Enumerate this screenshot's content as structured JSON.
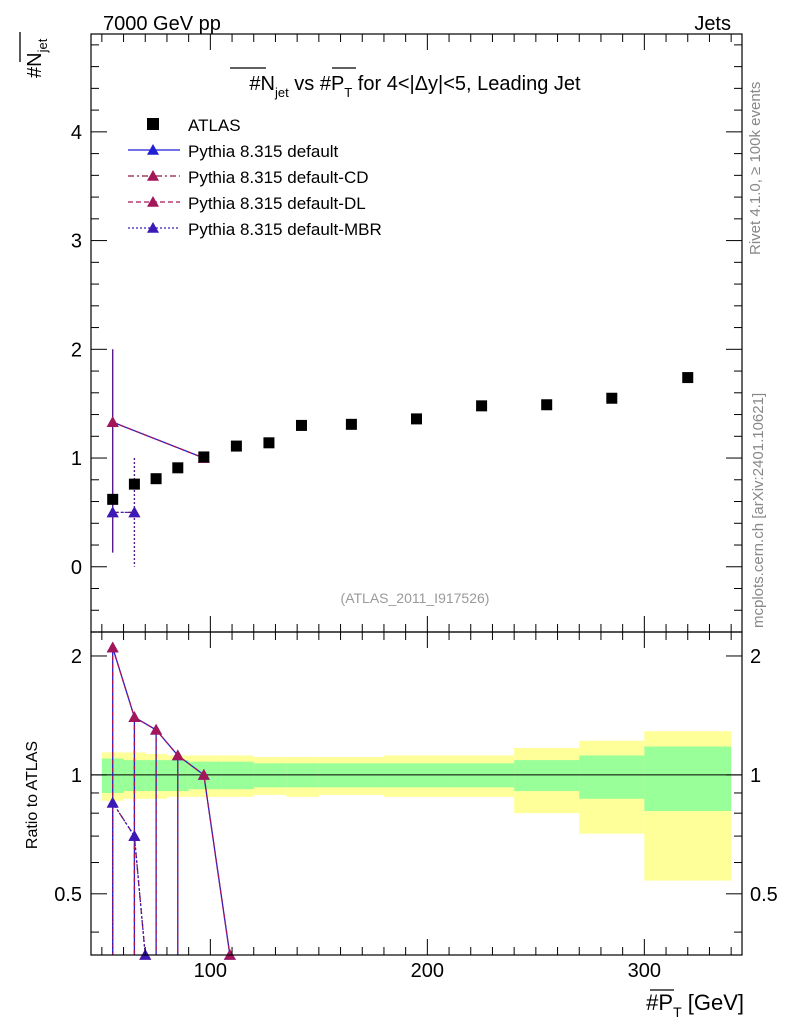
{
  "header": {
    "left": "7000 GeV pp",
    "right": "Jets"
  },
  "side_text": {
    "rivet": "Rivet 4.1.0, ≥ 100k events",
    "mcplots": "mcplots.cern.ch [arXiv:2401.10621]"
  },
  "chart_data": {
    "type": "scatter",
    "title": {
      "part1": "#N",
      "part1_sub": "jet",
      "part2": " vs #P",
      "part2_sub": "T",
      "part3": " for 4<|Δy|<5, Leading Jet"
    },
    "ylabel": {
      "main": "#N",
      "sub": "jet"
    },
    "xlabel": {
      "main": "#P",
      "sub": "T",
      "unit": " [GeV]"
    },
    "ratio_ylabel": "Ratio to ATLAS",
    "watermark": "(ATLAS_2011_I917526)",
    "xlim": [
      45,
      345
    ],
    "ylim": [
      -0.6,
      4.9
    ],
    "ratio_ylim": [
      0.35,
      2.3
    ],
    "x_ticks": [
      100,
      200,
      300
    ],
    "y_ticks": [
      0,
      1,
      2,
      3,
      4
    ],
    "ratio_ticks": [
      0.5,
      1,
      2
    ],
    "ratio_tick_labels": [
      "0.5",
      "1",
      "2"
    ],
    "data": {
      "name": "ATLAS",
      "points": [
        {
          "x": 55,
          "y": 0.62
        },
        {
          "x": 65,
          "y": 0.76
        },
        {
          "x": 75,
          "y": 0.81
        },
        {
          "x": 85,
          "y": 0.91
        },
        {
          "x": 97,
          "y": 1.01
        },
        {
          "x": 112,
          "y": 1.11
        },
        {
          "x": 127,
          "y": 1.14
        },
        {
          "x": 142,
          "y": 1.3
        },
        {
          "x": 165,
          "y": 1.31
        },
        {
          "x": 195,
          "y": 1.36
        },
        {
          "x": 225,
          "y": 1.48
        },
        {
          "x": 255,
          "y": 1.49
        },
        {
          "x": 285,
          "y": 1.55
        },
        {
          "x": 320,
          "y": 1.74
        }
      ]
    },
    "bands": [
      {
        "x0": 50,
        "x1": 60,
        "g": [
          0.9,
          1.1
        ],
        "y": [
          0.86,
          1.14
        ]
      },
      {
        "x0": 60,
        "x1": 70,
        "g": [
          0.91,
          1.09
        ],
        "y": [
          0.87,
          1.14
        ]
      },
      {
        "x0": 70,
        "x1": 80,
        "g": [
          0.91,
          1.09
        ],
        "y": [
          0.87,
          1.13
        ]
      },
      {
        "x0": 80,
        "x1": 90,
        "g": [
          0.91,
          1.09
        ],
        "y": [
          0.88,
          1.12
        ]
      },
      {
        "x0": 90,
        "x1": 105,
        "g": [
          0.92,
          1.08
        ],
        "y": [
          0.88,
          1.12
        ]
      },
      {
        "x0": 105,
        "x1": 120,
        "g": [
          0.92,
          1.08
        ],
        "y": [
          0.88,
          1.12
        ]
      },
      {
        "x0": 120,
        "x1": 135,
        "g": [
          0.93,
          1.07
        ],
        "y": [
          0.89,
          1.11
        ]
      },
      {
        "x0": 135,
        "x1": 150,
        "g": [
          0.93,
          1.07
        ],
        "y": [
          0.88,
          1.11
        ]
      },
      {
        "x0": 150,
        "x1": 180,
        "g": [
          0.93,
          1.07
        ],
        "y": [
          0.89,
          1.11
        ]
      },
      {
        "x0": 180,
        "x1": 210,
        "g": [
          0.93,
          1.07
        ],
        "y": [
          0.88,
          1.12
        ]
      },
      {
        "x0": 210,
        "x1": 240,
        "g": [
          0.93,
          1.07
        ],
        "y": [
          0.88,
          1.12
        ]
      },
      {
        "x0": 240,
        "x1": 270,
        "g": [
          0.91,
          1.09
        ],
        "y": [
          0.8,
          1.17
        ]
      },
      {
        "x0": 270,
        "x1": 300,
        "g": [
          0.87,
          1.12
        ],
        "y": [
          0.71,
          1.22
        ]
      },
      {
        "x0": 300,
        "x1": 340,
        "g": [
          0.81,
          1.18
        ],
        "y": [
          0.54,
          1.29
        ]
      }
    ],
    "series": [
      {
        "name": "Pythia 8.315 default",
        "color": "#1f1fd6",
        "dash": "",
        "marker": "#1f1fd6",
        "points": [
          {
            "x": 55,
            "y": 1.33
          },
          {
            "x": 97,
            "y": 1.0
          }
        ],
        "ratio": [
          {
            "x": 55,
            "y": 2.1
          },
          {
            "x": 65,
            "y": 1.4
          },
          {
            "x": 75,
            "y": 1.3
          },
          {
            "x": 85,
            "y": 1.12
          },
          {
            "x": 97,
            "y": 1.0
          },
          {
            "x": 109,
            "y": 0.35
          }
        ],
        "ratio_drops": [
          {
            "x": 55,
            "y": 2.1
          },
          {
            "x": 65,
            "y": 1.4
          },
          {
            "x": 75,
            "y": 1.3
          },
          {
            "x": 85,
            "y": 1.12
          }
        ]
      },
      {
        "name": "Pythia 8.315 default-CD",
        "color": "#8f1a3d",
        "dash": "6,3,2,3",
        "marker": "#a3175a",
        "points": [
          {
            "x": 55,
            "y": 0.5
          },
          {
            "x": 65,
            "y": 0.5
          }
        ],
        "ratio": [
          {
            "x": 55,
            "y": 0.85
          },
          {
            "x": 65,
            "y": 0.7
          },
          {
            "x": 70,
            "y": 0.35
          }
        ],
        "ratio_drops": [
          {
            "x": 55,
            "y": 0.85
          }
        ]
      },
      {
        "name": "Pythia 8.315 default-DL",
        "color": "#a3175a",
        "dash": "5,3",
        "marker": "#a3175a",
        "points": [
          {
            "x": 55,
            "y": 1.33
          },
          {
            "x": 97,
            "y": 1.0
          }
        ],
        "ratio": [
          {
            "x": 55,
            "y": 2.1
          },
          {
            "x": 65,
            "y": 1.4
          },
          {
            "x": 75,
            "y": 1.3
          },
          {
            "x": 85,
            "y": 1.12
          },
          {
            "x": 97,
            "y": 1.0
          },
          {
            "x": 109,
            "y": 0.35
          }
        ],
        "ratio_drops": [
          {
            "x": 55,
            "y": 2.1
          },
          {
            "x": 65,
            "y": 1.4
          },
          {
            "x": 75,
            "y": 1.3
          },
          {
            "x": 85,
            "y": 1.12
          }
        ]
      },
      {
        "name": "Pythia 8.315 default-MBR",
        "color": "#3b1ab8",
        "dash": "2,2",
        "marker": "#3b1ab8",
        "points": [
          {
            "x": 55,
            "y": 0.5
          },
          {
            "x": 65,
            "y": 0.5
          }
        ],
        "ratio": [
          {
            "x": 55,
            "y": 0.85
          },
          {
            "x": 65,
            "y": 0.7
          },
          {
            "x": 70,
            "y": 0.35
          }
        ],
        "ratio_drops": [
          {
            "x": 55,
            "y": 0.85
          }
        ]
      }
    ],
    "errorbars": [
      {
        "x": 55,
        "lo": 0.13,
        "hi": 2.0
      },
      {
        "x": 65,
        "lo": 0.0,
        "hi": 1.0
      }
    ]
  }
}
